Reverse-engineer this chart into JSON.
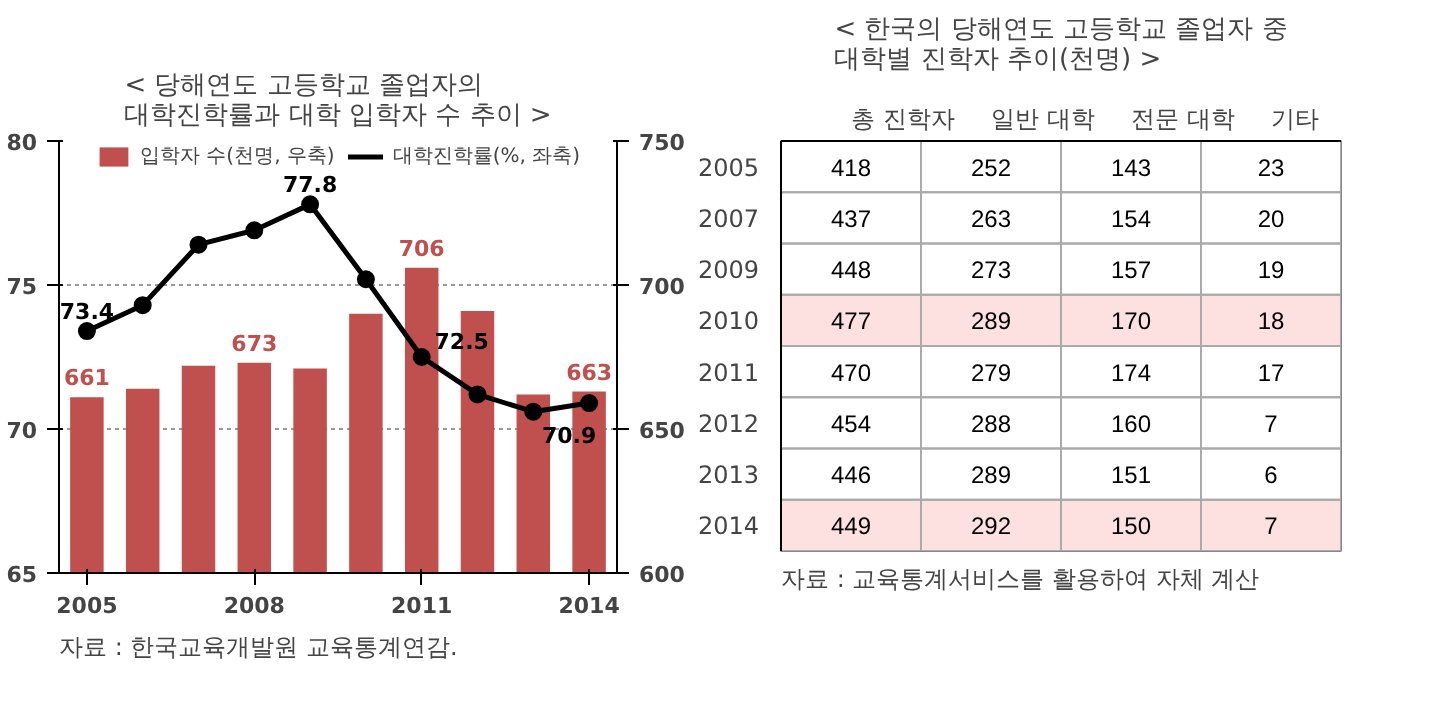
{
  "chart_data": [
    {
      "type": "bar",
      "title": "< 당해연도 고등학교 졸업자의\n대학진학률과 대학 입학자 수 추이 >",
      "x": [
        2005,
        2006,
        2007,
        2008,
        2009,
        2010,
        2011,
        2012,
        2013,
        2014
      ],
      "series": [
        {
          "name": "입학자 수(천명, 우축)",
          "type": "bar",
          "axis": "y2",
          "color": "#c0504d",
          "values": [
            661,
            664,
            672,
            673,
            671,
            690,
            706,
            691,
            662,
            663
          ],
          "value_labels": [
            "661",
            null,
            null,
            "673",
            null,
            null,
            "706",
            null,
            null,
            "663"
          ]
        },
        {
          "name": "대학진학률(%, 좌축)",
          "type": "line",
          "axis": "y",
          "color": "#000000",
          "marker": "circle",
          "values": [
            73.4,
            74.3,
            76.4,
            76.9,
            77.8,
            75.2,
            72.5,
            71.2,
            70.6,
            70.9
          ],
          "value_labels": [
            "73.4",
            null,
            null,
            null,
            "77.8",
            null,
            "72.5",
            null,
            null,
            "70.9"
          ]
        }
      ],
      "xlim": [
        2004.5,
        2014.5
      ],
      "xticks": [
        2005,
        2008,
        2011,
        2014
      ],
      "ylim": [
        65,
        80
      ],
      "yticks": [
        65,
        70,
        75,
        80
      ],
      "y2lim": [
        600,
        750
      ],
      "y2ticks": [
        600,
        650,
        700,
        750
      ],
      "grid": "y",
      "legend": "top",
      "annotations": [
        "자료 : 한국교육개발원 교육통계연감."
      ]
    },
    {
      "type": "heatmap",
      "title": "< 한국의 당해연도 고등학교 졸업자 중\n대학별 진학자 추이(천명) >",
      "categories": [
        "총 진학자",
        "일반 대학",
        "전문 대학",
        "기타"
      ],
      "y_categories": [
        "2005",
        "2007",
        "2009",
        "2010",
        "2011",
        "2012",
        "2013",
        "2014"
      ],
      "cells": [
        [
          418,
          252,
          143,
          23
        ],
        [
          437,
          263,
          154,
          20
        ],
        [
          448,
          273,
          157,
          19
        ],
        [
          477,
          289,
          170,
          18
        ],
        [
          470,
          279,
          174,
          17
        ],
        [
          454,
          288,
          160,
          7
        ],
        [
          446,
          289,
          151,
          6
        ],
        [
          449,
          292,
          150,
          7
        ]
      ],
      "data_labels": true,
      "bands": [
        {
          "axis": "y",
          "from": "2010",
          "to": "2010",
          "color": "#fde0e0"
        },
        {
          "axis": "y",
          "from": "2014",
          "to": "2014",
          "color": "#fde0e0"
        }
      ],
      "annotations": [
        "자료 : 교육통계서비스를 활용하여 자체 계산"
      ]
    }
  ]
}
